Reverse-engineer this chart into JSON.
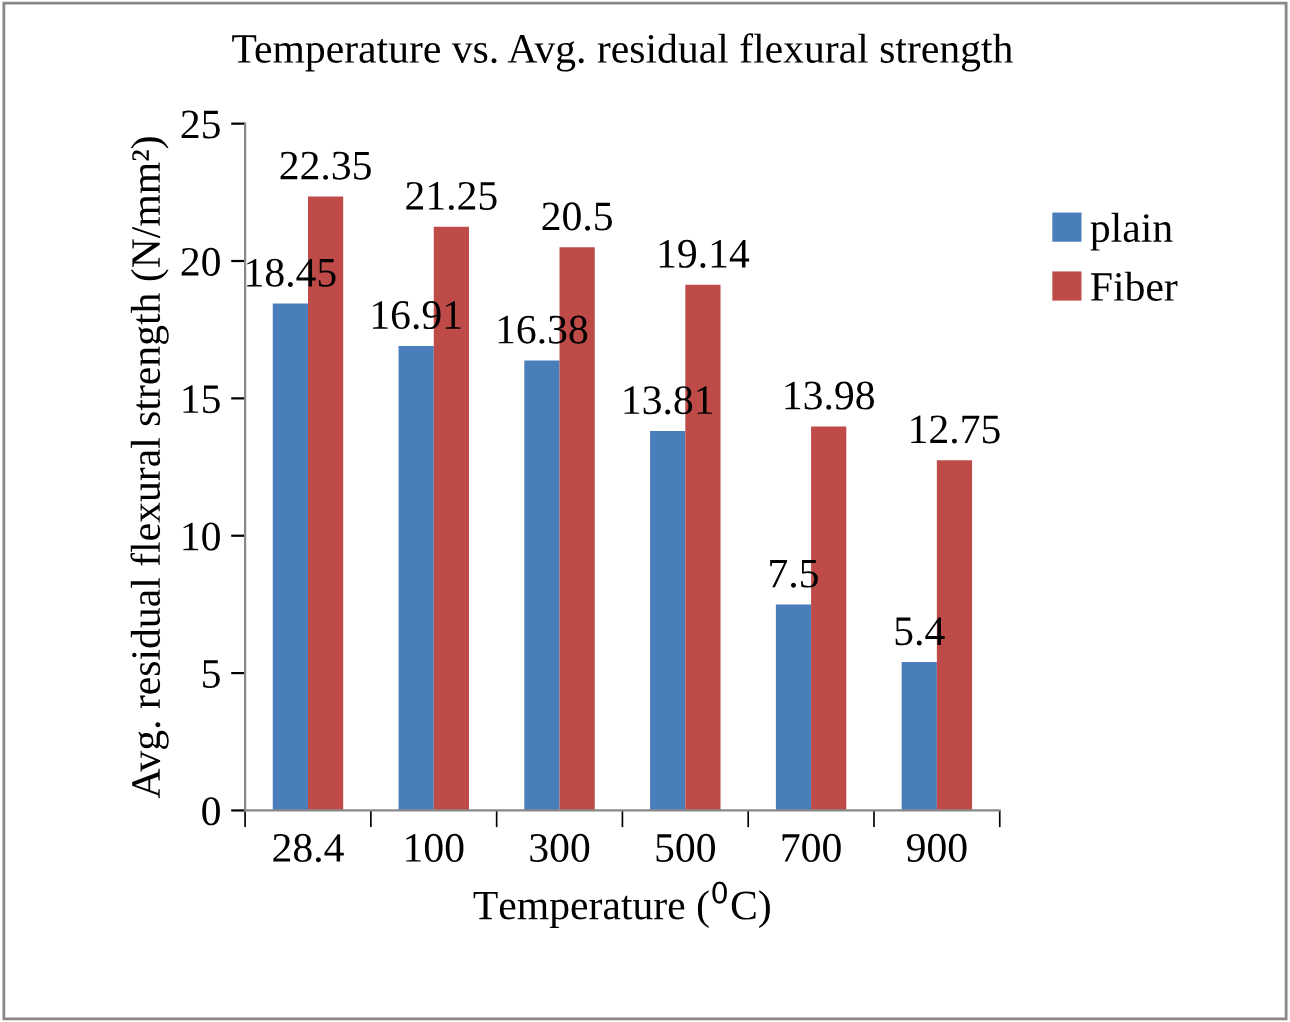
{
  "chart_data": {
    "type": "bar",
    "title": "Temperature vs. Avg. residual flexural strength",
    "xlabel": "Temperature ($^{0}$C)",
    "ylabel": "Avg. residual flexural strength (N/mm²)",
    "categories": [
      "28.4",
      "100",
      "300",
      "500",
      "700",
      "900"
    ],
    "series": [
      {
        "name": "plain",
        "color": "#4a7ebb",
        "values": [
          18.45,
          16.91,
          16.38,
          13.81,
          7.5,
          5.4
        ]
      },
      {
        "name": "Fiber",
        "color": "#be4b48",
        "values": [
          22.35,
          21.25,
          20.5,
          19.14,
          13.98,
          12.75
        ]
      }
    ],
    "ylim": [
      0,
      25
    ],
    "yticks": [
      0,
      5,
      10,
      15,
      20,
      25
    ],
    "grid": false,
    "legend": "right",
    "data_labels": true
  }
}
